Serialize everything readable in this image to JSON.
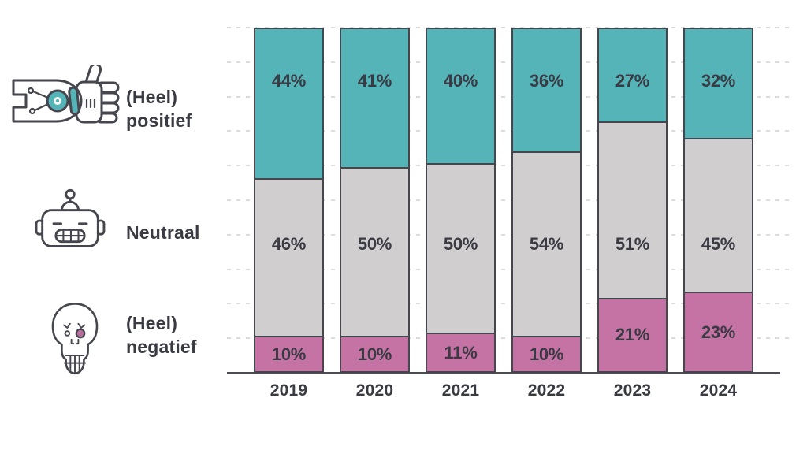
{
  "page": {
    "background": "#ffffff"
  },
  "legend": {
    "items": [
      {
        "id": "positive",
        "icon": "robot-thumbs-up-icon",
        "lines": [
          "(Heel)",
          "positief"
        ]
      },
      {
        "id": "neutral",
        "icon": "robot-face-icon",
        "lines": [
          "Neutraal"
        ]
      },
      {
        "id": "negative",
        "icon": "skull-icon",
        "lines": [
          "(Heel)",
          "negatief"
        ]
      }
    ]
  },
  "chart_data": {
    "type": "bar",
    "subtype": "stacked-percentage-columns",
    "categories": [
      "2019",
      "2020",
      "2021",
      "2022",
      "2023",
      "2024"
    ],
    "series": [
      {
        "name": "(Heel) positief",
        "color": "#54b4b8",
        "values": [
          44,
          41,
          40,
          36,
          27,
          32
        ]
      },
      {
        "name": "Neutraal",
        "color": "#d0cece",
        "values": [
          46,
          50,
          50,
          54,
          51,
          45
        ]
      },
      {
        "name": "(Heel) negatief",
        "color": "#c573a5",
        "values": [
          10,
          10,
          11,
          10,
          21,
          23
        ]
      }
    ],
    "value_suffix": "%",
    "ylim": [
      0,
      100
    ],
    "grid": {
      "visible": true,
      "step": 10,
      "style": "dashed"
    },
    "legend_position": "left",
    "title": "",
    "xlabel": "",
    "ylabel": ""
  },
  "colors": {
    "positive": "#54b4b8",
    "neutral": "#d0cece",
    "negative": "#c573a5",
    "outline": "#46464e",
    "text": "#3a3a43",
    "gridline": "#dcdcdc",
    "axis": "#4c4c53",
    "skull_eye": "#b96d9e"
  }
}
